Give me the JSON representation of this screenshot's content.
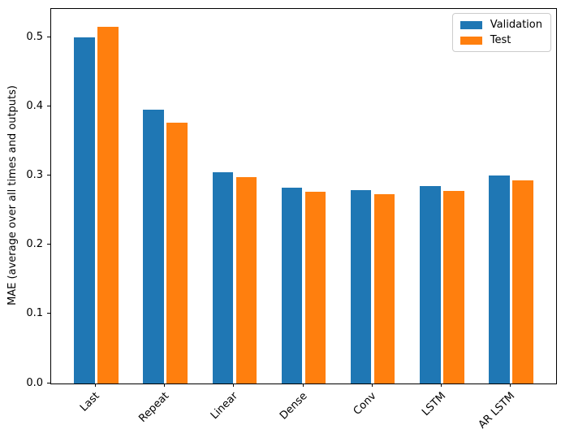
{
  "chart_data": {
    "type": "bar",
    "title": "",
    "xlabel": "",
    "ylabel": "MAE (average over all times and outputs)",
    "categories": [
      "Last",
      "Repeat",
      "Linear",
      "Dense",
      "Conv",
      "LSTM",
      "AR LSTM"
    ],
    "series": [
      {
        "name": "Validation",
        "color": "#1f77b4",
        "values": [
          0.501,
          0.396,
          0.306,
          0.283,
          0.28,
          0.286,
          0.301
        ]
      },
      {
        "name": "Test",
        "color": "#ff7f0e",
        "values": [
          0.516,
          0.377,
          0.299,
          0.277,
          0.274,
          0.279,
          0.294
        ]
      }
    ],
    "ylim": [
      0,
      0.542
    ],
    "ytick_values": [
      0.0,
      0.1,
      0.2,
      0.3,
      0.4,
      0.5
    ],
    "ytick_labels": [
      "0.0",
      "0.1",
      "0.2",
      "0.3",
      "0.4",
      "0.5"
    ],
    "x_padding": 0.652,
    "bar_width": 0.3,
    "bar_offsets": [
      -0.17,
      0.17
    ],
    "x_tick_rotation": 45,
    "grid": false,
    "legend": {
      "position": "upper right",
      "entries": [
        "Validation",
        "Test"
      ]
    },
    "colors": {
      "background": "#ffffff",
      "axis": "#000000",
      "text": "#000000",
      "legend_border": "#cccccc"
    }
  }
}
